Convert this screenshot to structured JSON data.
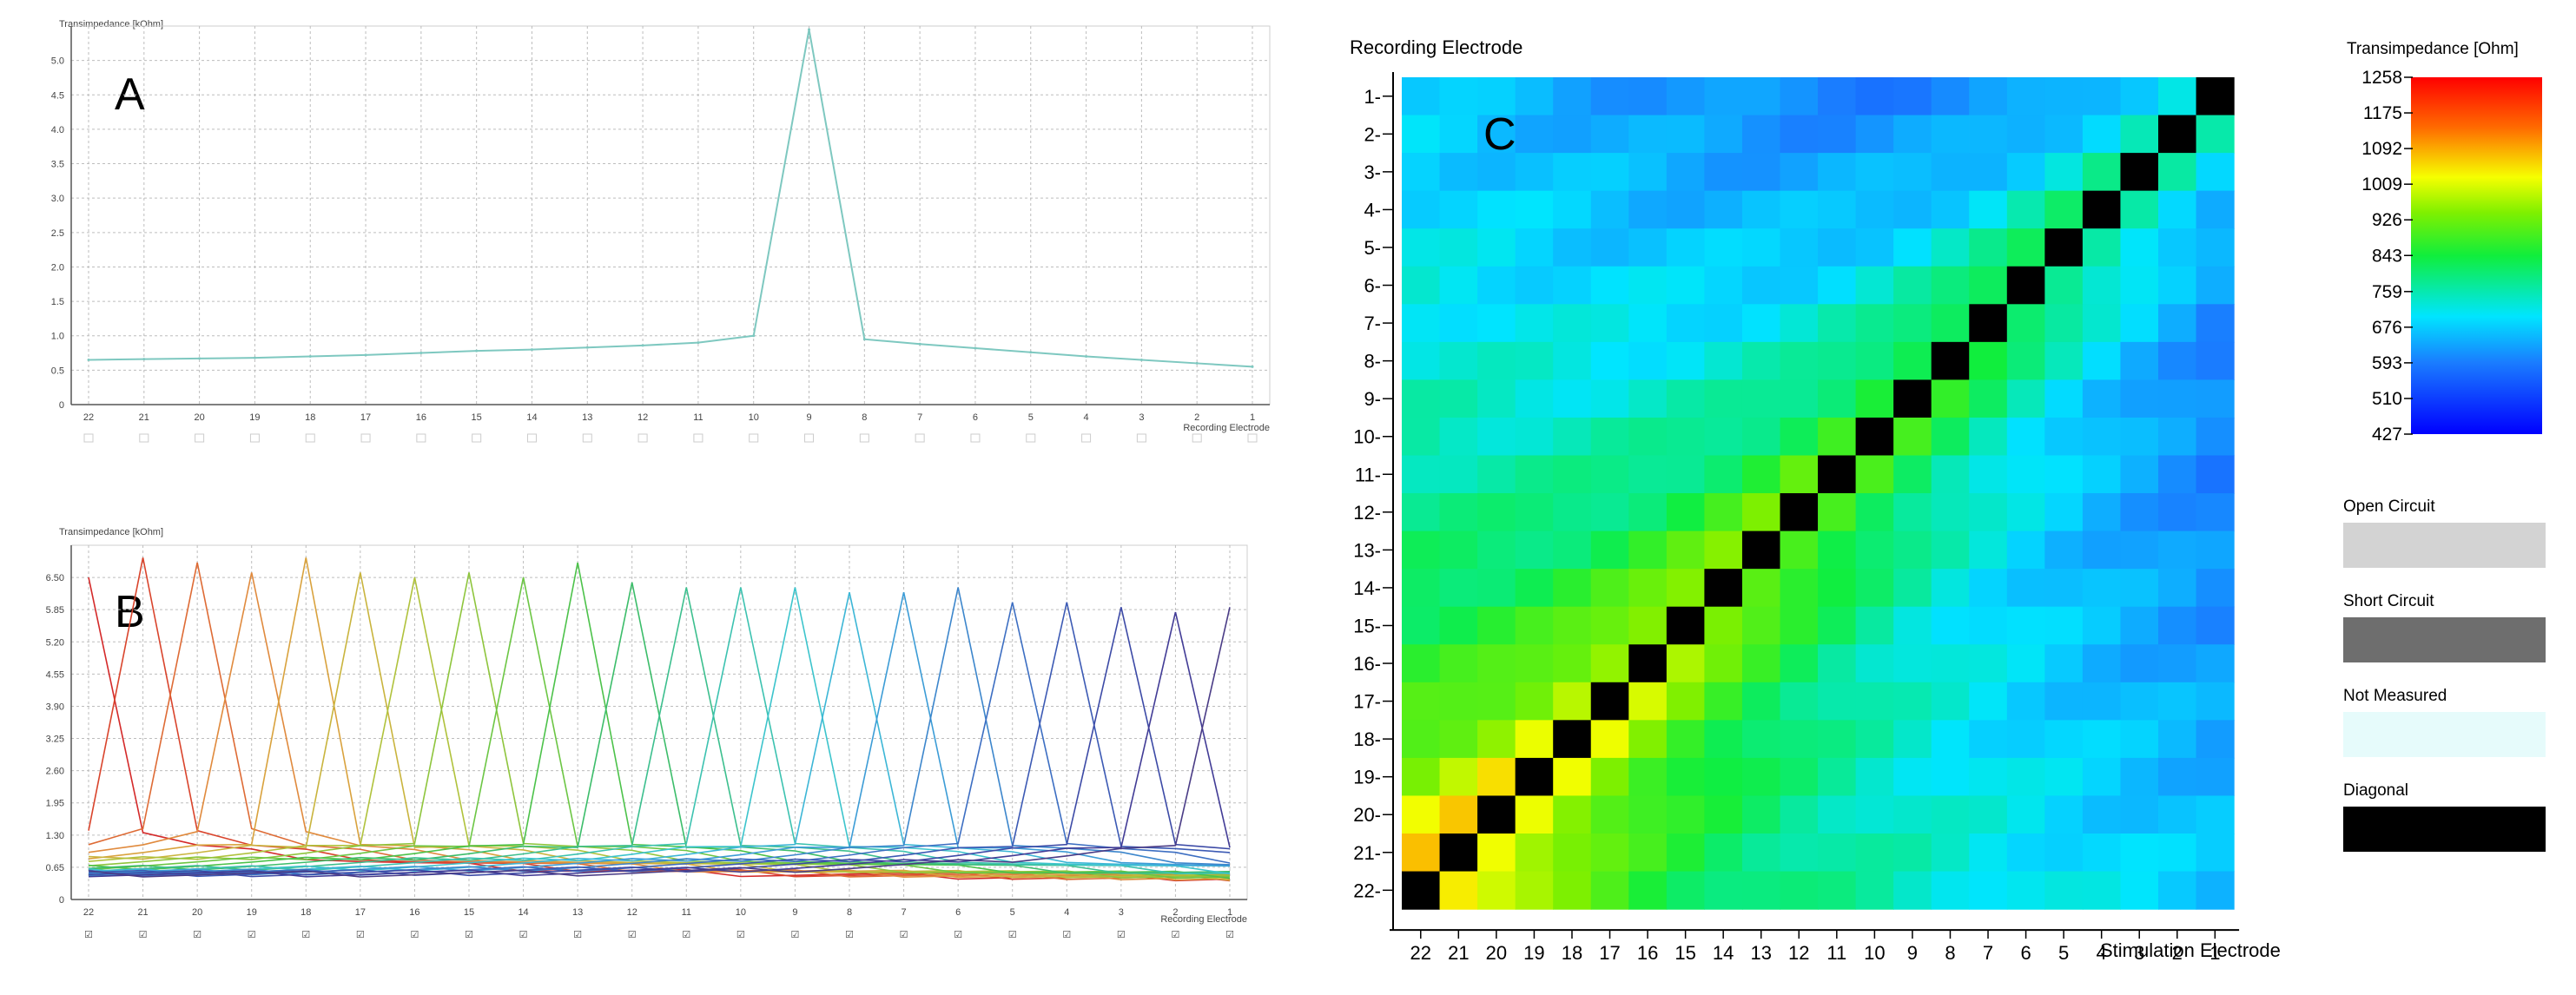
{
  "panel_labels": {
    "a": "A",
    "b": "B",
    "c": "C"
  },
  "chart_data": [
    {
      "type": "line",
      "panel": "A",
      "title": "",
      "ylabel": "Transimpedance [kOhm]",
      "xlabel": "Recording Electrode",
      "categories": [
        "22",
        "21",
        "20",
        "19",
        "18",
        "17",
        "16",
        "15",
        "14",
        "13",
        "12",
        "11",
        "10",
        "9",
        "8",
        "7",
        "6",
        "5",
        "4",
        "3",
        "2",
        "1"
      ],
      "ylim": [
        0,
        5.5
      ],
      "y_ticks": [
        "0",
        "0.5",
        "1.0",
        "1.5",
        "2.0",
        "2.5",
        "3.0",
        "3.5",
        "4.0",
        "4.5",
        "5.0"
      ],
      "grid": true,
      "series": [
        {
          "color": "#7ec8c0",
          "values": [
            0.65,
            0.66,
            0.67,
            0.68,
            0.7,
            0.72,
            0.75,
            0.78,
            0.8,
            0.83,
            0.86,
            0.9,
            1.0,
            5.45,
            0.95,
            0.88,
            0.82,
            0.76,
            0.7,
            0.65,
            0.6,
            0.55
          ]
        }
      ]
    },
    {
      "type": "line",
      "panel": "B",
      "title": "",
      "ylabel": "Transimpedance [kOhm]",
      "xlabel": "Recording Electrode",
      "categories": [
        "22",
        "21",
        "20",
        "19",
        "18",
        "17",
        "16",
        "15",
        "14",
        "13",
        "12",
        "11",
        "10",
        "9",
        "8",
        "7",
        "6",
        "5",
        "4",
        "3",
        "2",
        "1"
      ],
      "ylim": [
        0,
        7.15
      ],
      "y_ticks": [
        "0",
        "0.65",
        "1.30",
        "1.95",
        "2.60",
        "3.25",
        "3.90",
        "4.55",
        "5.20",
        "5.85",
        "6.50"
      ],
      "grid": true,
      "peaks": [
        6.5,
        6.9,
        6.8,
        6.6,
        6.9,
        6.6,
        6.5,
        6.6,
        6.5,
        6.8,
        6.4,
        6.3,
        6.3,
        6.3,
        6.2,
        6.2,
        6.3,
        6.0,
        6.0,
        5.9,
        5.8,
        5.9
      ],
      "series_colors": [
        "#d42a2a",
        "#d9442c",
        "#de6b35",
        "#e08a3d",
        "#d9a23d",
        "#c9b43d",
        "#b0c23c",
        "#8ec53c",
        "#6cc644",
        "#4cc24a",
        "#3cbd6a",
        "#3cbf8e",
        "#3cc2b0",
        "#3cc4cc",
        "#3cb6d6",
        "#3c9cd6",
        "#3c86cc",
        "#3c6ec2",
        "#3c5ab4",
        "#3c4aa6",
        "#423c96",
        "#4a3c86"
      ],
      "checkbox_glyph": "☑"
    },
    {
      "type": "heatmap",
      "panel": "C",
      "ylabel": "Recording Electrode",
      "xlabel": "Stimulation Electrode",
      "rows": [
        "1",
        "2",
        "3",
        "4",
        "5",
        "6",
        "7",
        "8",
        "9",
        "10",
        "11",
        "12",
        "13",
        "14",
        "15",
        "16",
        "17",
        "18",
        "19",
        "20",
        "21",
        "22"
      ],
      "cols": [
        "22",
        "21",
        "20",
        "19",
        "18",
        "17",
        "16",
        "15",
        "14",
        "13",
        "12",
        "11",
        "10",
        "9",
        "8",
        "7",
        "6",
        "5",
        "4",
        "3",
        "2",
        "1"
      ],
      "diagonal": "black",
      "colorbar": {
        "title": "Transimpedance [Ohm]",
        "min": 427,
        "max": 1258,
        "ticks": [
          "1258",
          "1175",
          "1092",
          "1009",
          "926",
          "843",
          "759",
          "676",
          "593",
          "510",
          "427"
        ]
      },
      "legend": [
        {
          "label": "Open Circuit",
          "color": "#d3d3d3"
        },
        {
          "label": "Short Circuit",
          "color": "#6e6e6e"
        },
        {
          "label": "Not Measured",
          "color": "#e6fbfb"
        },
        {
          "label": "Diagonal",
          "color": "#000000"
        }
      ]
    }
  ]
}
